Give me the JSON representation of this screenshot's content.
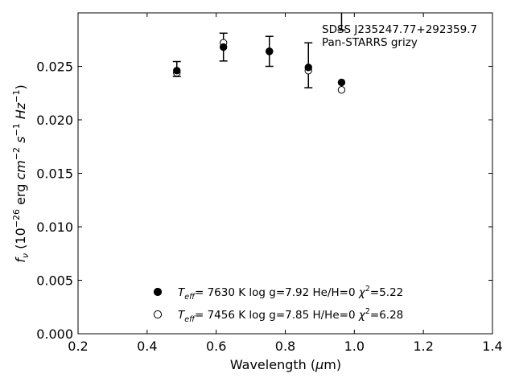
{
  "chart_data": {
    "type": "scatter",
    "title": "",
    "xlabel": "Wavelength (μm)",
    "ylabel": "f_ν (10^-26 erg cm^-2 s^-1 Hz^-1)",
    "xlim": [
      0.2,
      1.4
    ],
    "ylim": [
      0.0,
      0.03
    ],
    "x_ticks": [
      "0.2",
      "0.4",
      "0.6",
      "0.8",
      "1.0",
      "1.2",
      "1.4"
    ],
    "y_ticks": [
      "0.000",
      "0.005",
      "0.010",
      "0.015",
      "0.020",
      "0.025"
    ],
    "grid": false,
    "legend_position": "lower-center",
    "annotation": {
      "line1": "SDSS J235247.77+292359.7",
      "line2": "Pan-STARRS grizy"
    },
    "observed": {
      "x": [
        0.486,
        0.621,
        0.754,
        0.867,
        0.963
      ],
      "y": [
        0.02475,
        0.0268,
        0.0264,
        0.0251,
        0.0296
      ],
      "yerr": [
        0.0007,
        0.0013,
        0.0014,
        0.0021,
        0.0012
      ]
    },
    "series": [
      {
        "name": "T_eff= 7630 K log g=7.92 He/H=0 χ²=5.22",
        "marker": "filled-circle",
        "x": [
          0.486,
          0.621,
          0.754,
          0.867,
          0.963
        ],
        "values": [
          0.0246,
          0.0268,
          0.0264,
          0.0249,
          0.0235
        ]
      },
      {
        "name": "T_eff= 7456 K log g=7.85 H/He=0 χ²=6.28",
        "marker": "open-circle",
        "x": [
          0.486,
          0.621,
          0.754,
          0.867,
          0.963
        ],
        "values": [
          0.0244,
          0.0272,
          0.0264,
          0.0246,
          0.0228
        ]
      }
    ],
    "legend": [
      {
        "teff": "7630 K",
        "logg": "log g=7.92",
        "comp": "He/H=0",
        "chi2": "=5.22"
      },
      {
        "teff": "7456 K",
        "logg": "log g=7.85",
        "comp": "H/He=0",
        "chi2": "=6.28"
      }
    ]
  }
}
